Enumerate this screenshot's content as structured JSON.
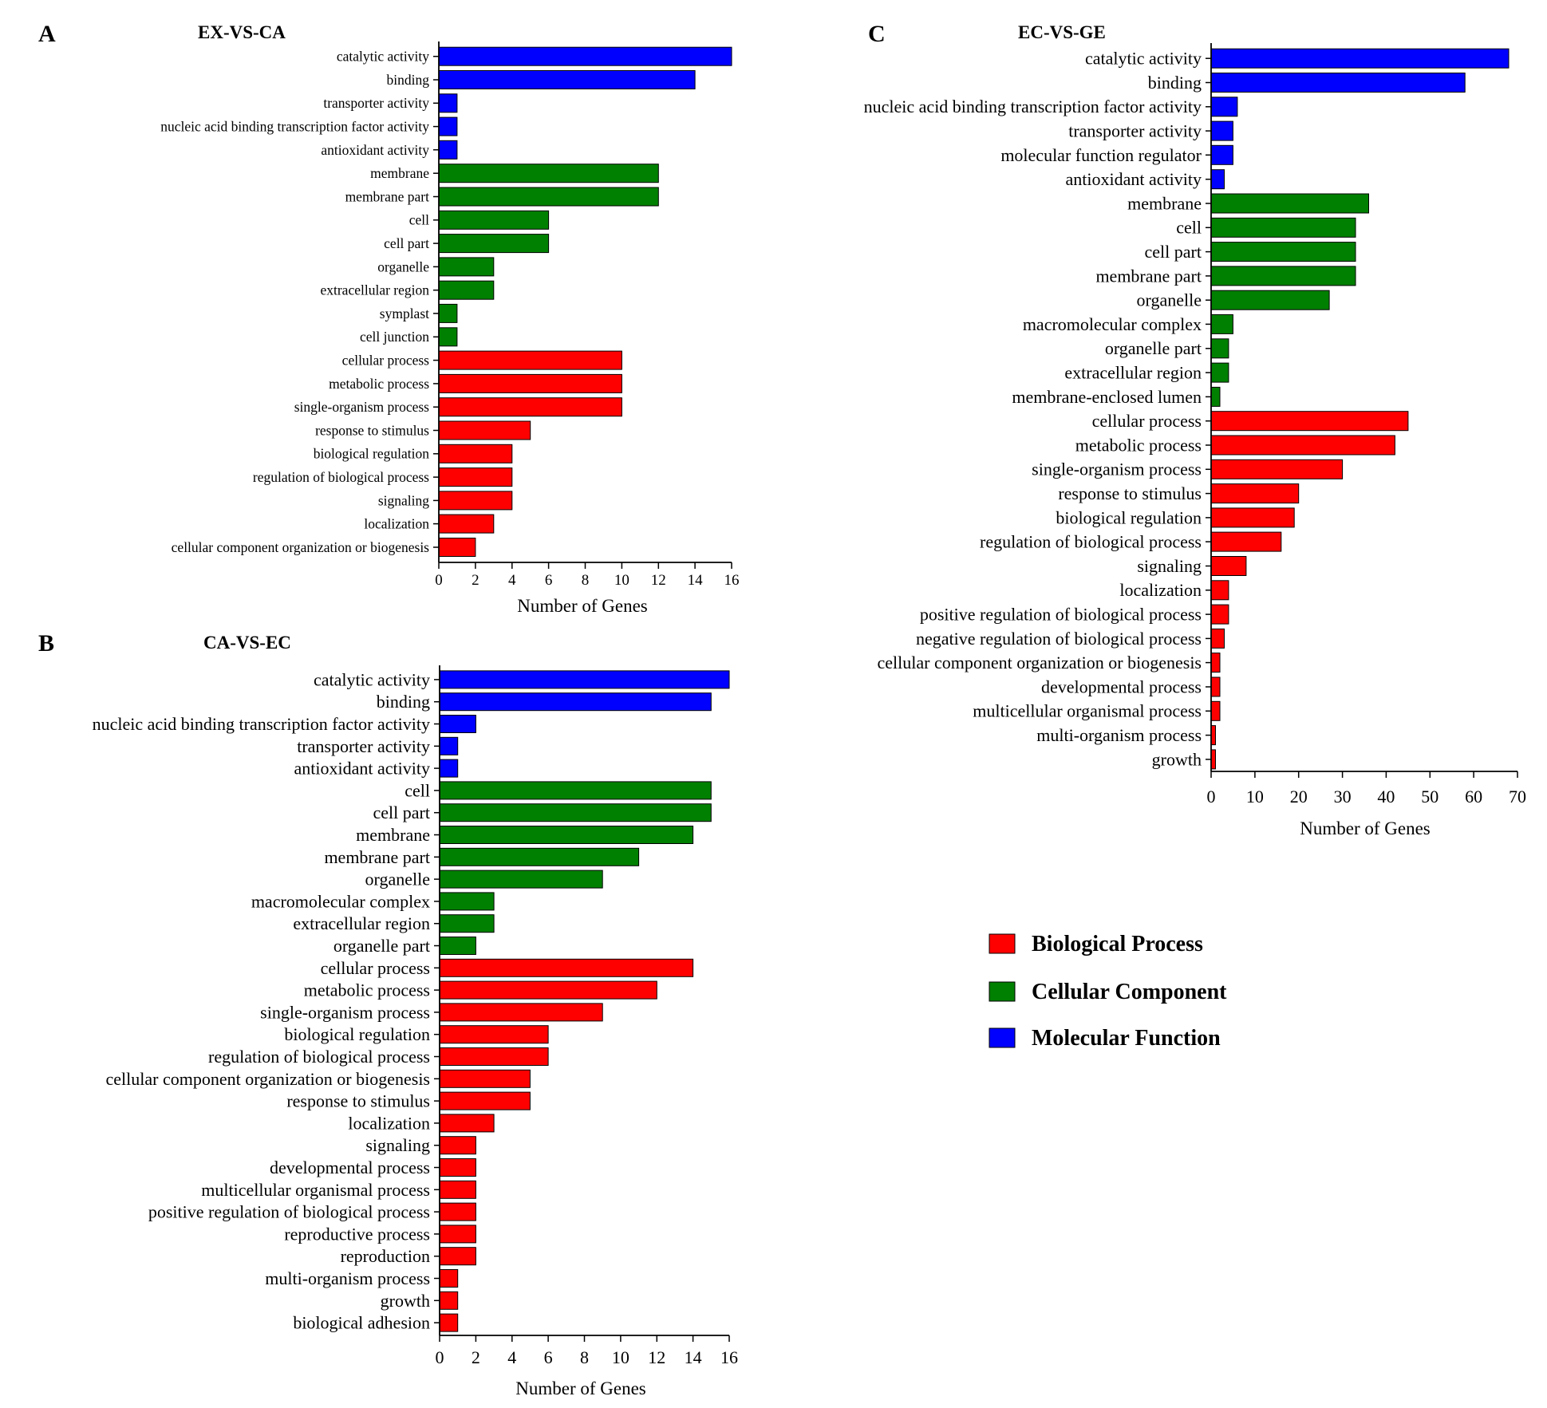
{
  "colors": {
    "molecular_function": "#0000ff",
    "cellular_component": "#008000",
    "biological_process": "#ff0000"
  },
  "legend": [
    {
      "label": "Biological Process",
      "group": "biological_process"
    },
    {
      "label": "Cellular Component",
      "group": "cellular_component"
    },
    {
      "label": "Molecular Function",
      "group": "molecular_function"
    }
  ],
  "chart_data": [
    {
      "type": "bar",
      "orientation": "horizontal",
      "panel": "A",
      "title": "EX-VS-CA",
      "xlabel": "Number of Genes",
      "ylabel": "",
      "xlim": [
        0,
        16
      ],
      "xticks": [
        0,
        2,
        4,
        6,
        8,
        10,
        12,
        14,
        16
      ],
      "categories": [
        "catalytic activity",
        "binding",
        "transporter activity",
        "nucleic acid binding transcription factor activity",
        "antioxidant activity",
        "membrane",
        "membrane part",
        "cell",
        "cell part",
        "organelle",
        "extracellular region",
        "symplast",
        "cell junction",
        "cellular process",
        "metabolic process",
        "single-organism process",
        "response to stimulus",
        "biological regulation",
        "regulation of biological process",
        "signaling",
        "localization",
        "cellular component organization or biogenesis"
      ],
      "values": [
        16,
        14,
        1,
        1,
        1,
        12,
        12,
        6,
        6,
        3,
        3,
        1,
        1,
        10,
        10,
        10,
        5,
        4,
        4,
        4,
        3,
        2
      ],
      "groups": [
        "molecular_function",
        "molecular_function",
        "molecular_function",
        "molecular_function",
        "molecular_function",
        "cellular_component",
        "cellular_component",
        "cellular_component",
        "cellular_component",
        "cellular_component",
        "cellular_component",
        "cellular_component",
        "cellular_component",
        "biological_process",
        "biological_process",
        "biological_process",
        "biological_process",
        "biological_process",
        "biological_process",
        "biological_process",
        "biological_process",
        "biological_process"
      ]
    },
    {
      "type": "bar",
      "orientation": "horizontal",
      "panel": "B",
      "title": "CA-VS-EC",
      "xlabel": "Number of Genes",
      "ylabel": "",
      "xlim": [
        0,
        16
      ],
      "xticks": [
        0,
        2,
        4,
        6,
        8,
        10,
        12,
        14,
        16
      ],
      "categories": [
        "catalytic activity",
        "binding",
        "nucleic acid binding transcription factor activity",
        "transporter activity",
        "antioxidant activity",
        "cell",
        "cell part",
        "membrane",
        "membrane part",
        "organelle",
        "macromolecular complex",
        "extracellular region",
        "organelle part",
        "cellular process",
        "metabolic process",
        "single-organism process",
        "biological regulation",
        "regulation of biological process",
        "cellular component organization or biogenesis",
        "response to stimulus",
        "localization",
        "signaling",
        "developmental process",
        "multicellular organismal process",
        "positive regulation of biological process",
        "reproductive process",
        "reproduction",
        "multi-organism process",
        "growth",
        "biological adhesion"
      ],
      "values": [
        16,
        15,
        2,
        1,
        1,
        15,
        15,
        14,
        11,
        9,
        3,
        3,
        2,
        14,
        12,
        9,
        6,
        6,
        5,
        5,
        3,
        2,
        2,
        2,
        2,
        2,
        2,
        1,
        1,
        1
      ],
      "groups": [
        "molecular_function",
        "molecular_function",
        "molecular_function",
        "molecular_function",
        "molecular_function",
        "cellular_component",
        "cellular_component",
        "cellular_component",
        "cellular_component",
        "cellular_component",
        "cellular_component",
        "cellular_component",
        "cellular_component",
        "biological_process",
        "biological_process",
        "biological_process",
        "biological_process",
        "biological_process",
        "biological_process",
        "biological_process",
        "biological_process",
        "biological_process",
        "biological_process",
        "biological_process",
        "biological_process",
        "biological_process",
        "biological_process",
        "biological_process",
        "biological_process",
        "biological_process"
      ]
    },
    {
      "type": "bar",
      "orientation": "horizontal",
      "panel": "C",
      "title": "EC-VS-GE",
      "xlabel": "Number of Genes",
      "ylabel": "",
      "xlim": [
        0,
        70
      ],
      "xticks": [
        0,
        10,
        20,
        30,
        40,
        50,
        60,
        70
      ],
      "categories": [
        "catalytic activity",
        "binding",
        "nucleic acid binding transcription factor activity",
        "transporter activity",
        "molecular function regulator",
        "antioxidant activity",
        "membrane",
        "cell",
        "cell part",
        "membrane part",
        "organelle",
        "macromolecular complex",
        "organelle part",
        "extracellular region",
        "membrane-enclosed lumen",
        "cellular process",
        "metabolic process",
        "single-organism process",
        "response to stimulus",
        "biological regulation",
        "regulation of biological process",
        "signaling",
        "localization",
        "positive regulation of biological process",
        "negative regulation of biological process",
        "cellular component organization or biogenesis",
        "developmental process",
        "multicellular organismal process",
        "multi-organism process",
        "growth"
      ],
      "values": [
        68,
        58,
        6,
        5,
        5,
        3,
        36,
        33,
        33,
        33,
        27,
        5,
        4,
        4,
        2,
        45,
        42,
        30,
        20,
        19,
        16,
        8,
        4,
        4,
        3,
        2,
        2,
        2,
        1,
        1
      ],
      "groups": [
        "molecular_function",
        "molecular_function",
        "molecular_function",
        "molecular_function",
        "molecular_function",
        "molecular_function",
        "cellular_component",
        "cellular_component",
        "cellular_component",
        "cellular_component",
        "cellular_component",
        "cellular_component",
        "cellular_component",
        "cellular_component",
        "cellular_component",
        "biological_process",
        "biological_process",
        "biological_process",
        "biological_process",
        "biological_process",
        "biological_process",
        "biological_process",
        "biological_process",
        "biological_process",
        "biological_process",
        "biological_process",
        "biological_process",
        "biological_process",
        "biological_process",
        "biological_process"
      ]
    }
  ]
}
